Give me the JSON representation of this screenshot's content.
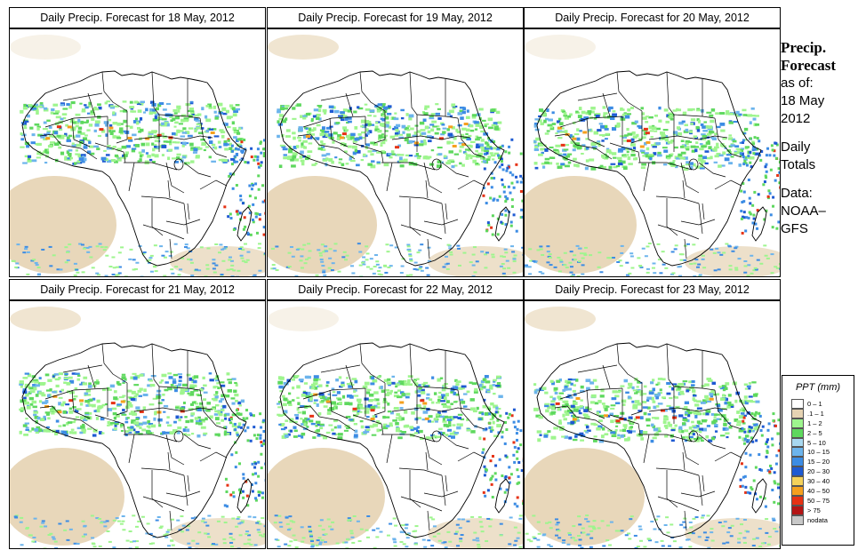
{
  "panels": [
    {
      "title": "Daily Precip. Forecast for  18 May, 2012"
    },
    {
      "title": "Daily Precip. Forecast for  19 May, 2012"
    },
    {
      "title": "Daily Precip. Forecast for  20 May, 2012"
    },
    {
      "title": "Daily Precip. Forecast for  21 May, 2012"
    },
    {
      "title": "Daily Precip. Forecast for  22 May, 2012"
    },
    {
      "title": "Daily Precip. Forecast for  23 May, 2012"
    }
  ],
  "sidebar": {
    "title_line1": "Precip.",
    "title_line2": "Forecast",
    "asof_line1": "as of:",
    "asof_line2": "18 May",
    "asof_line3": "2012",
    "totals_line1": "Daily",
    "totals_line2": "Totals",
    "source_line1": "Data:",
    "source_line2": "NOAA–",
    "source_line3": "GFS"
  },
  "legend": {
    "title": "PPT (mm)",
    "items": [
      {
        "label": "0 – 1",
        "color": "#ffffff"
      },
      {
        "label": ".1 – 1",
        "color": "#e6d3b3"
      },
      {
        "label": "1 – 2",
        "color": "#9ef58e"
      },
      {
        "label": "2 – 5",
        "color": "#5ed85e"
      },
      {
        "label": "5 – 10",
        "color": "#a8d8f0"
      },
      {
        "label": "10 – 15",
        "color": "#6cb4ec"
      },
      {
        "label": "15 – 20",
        "color": "#3c8ce4"
      },
      {
        "label": "20 – 30",
        "color": "#1e5ad2"
      },
      {
        "label": "30 – 40",
        "color": "#f5d25a"
      },
      {
        "label": "40 – 50",
        "color": "#f5a01e"
      },
      {
        "label": "50 – 75",
        "color": "#e63214"
      },
      {
        "label": "> 75",
        "color": "#b41414"
      },
      {
        "label": "nodata",
        "color": "#c8c8c8"
      }
    ]
  }
}
